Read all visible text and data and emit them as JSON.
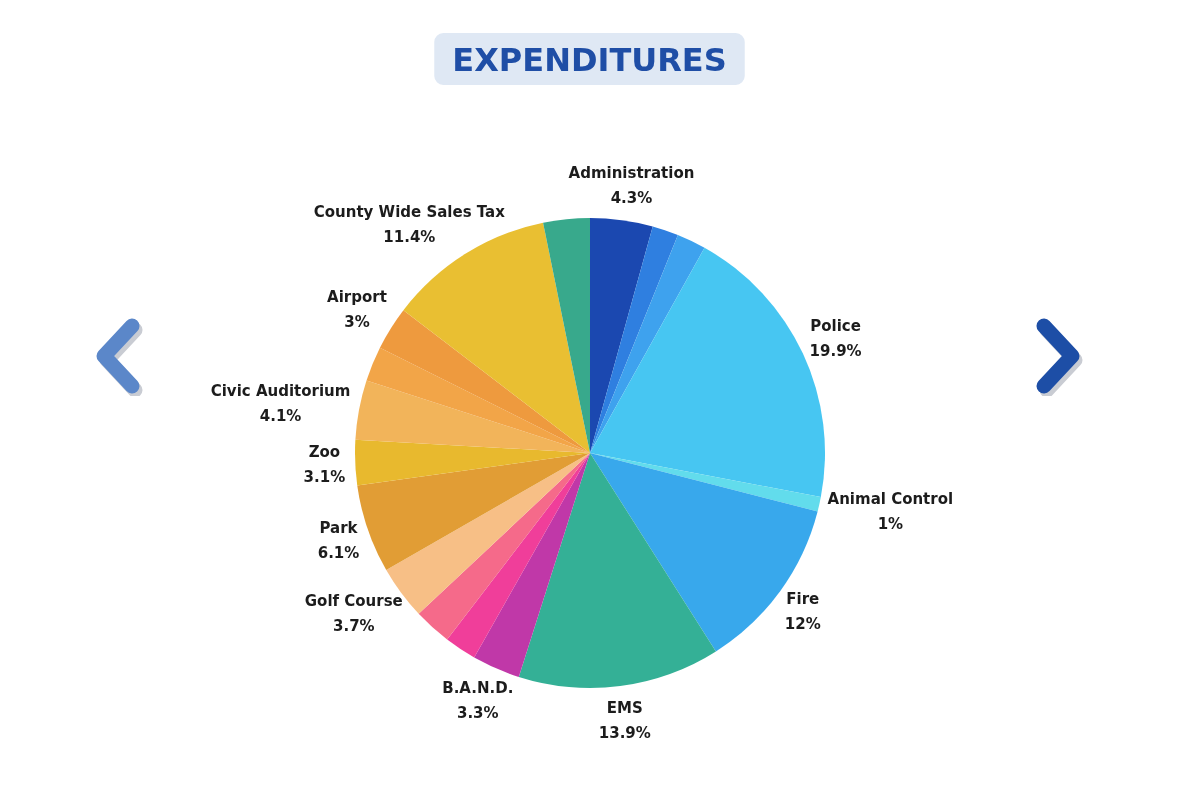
{
  "chart_data": {
    "type": "pie",
    "title": "EXPENDITURES",
    "categories": [
      "Administration",
      null,
      null,
      "Police",
      "Animal Control",
      "Fire",
      "EMS",
      "B.A.N.D.",
      null,
      null,
      "Golf Course",
      "Park",
      "Zoo",
      "Civic Auditorium",
      null,
      "Airport",
      "County Wide Sales Tax",
      null
    ],
    "values": [
      4.3,
      1.8,
      2.0,
      19.9,
      1,
      12,
      13.9,
      3.3,
      2.2,
      2.6,
      3.7,
      6.1,
      3.1,
      4.1,
      2.4,
      3,
      11.4,
      3.2
    ],
    "value_labels": [
      "4.3%",
      null,
      null,
      "19.9%",
      "1%",
      "12%",
      "13.9%",
      "3.3%",
      null,
      null,
      "3.7%",
      "6.1%",
      "3.1%",
      "4.1%",
      null,
      "3%",
      "11.4%",
      null
    ],
    "colors": [
      "#1b48b0",
      "#2f7fe0",
      "#3ea2ee",
      "#47c6f2",
      "#62dcec",
      "#38a8ec",
      "#34b096",
      "#c038a8",
      "#f03e9a",
      "#f56a8a",
      "#f7bf86",
      "#e19d35",
      "#e8b92e",
      "#f2b45a",
      "#f2a548",
      "#ee9a3e",
      "#e9bf32",
      "#38a98c"
    ]
  }
}
